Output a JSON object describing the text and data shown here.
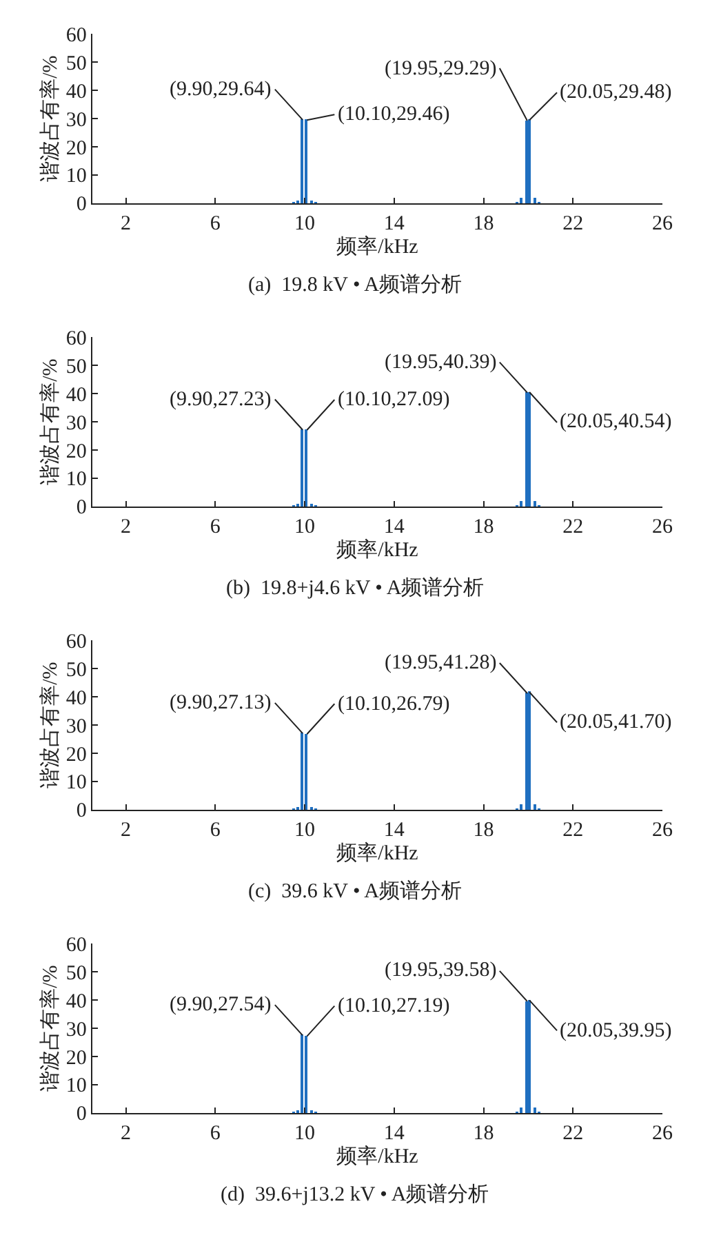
{
  "chart_data": [
    {
      "type": "bar",
      "title": "(a)  19.8 kV • A频谱分析",
      "xlabel": "频率/kHz",
      "ylabel": "谐波占有率/%",
      "color": "#1f6fc0",
      "x": [
        9.5,
        9.7,
        9.9,
        10.1,
        10.3,
        10.5,
        19.5,
        19.7,
        19.95,
        20.05,
        20.3,
        20.5
      ],
      "values": [
        0.3,
        1,
        29.64,
        29.46,
        1,
        0.3,
        0.3,
        2,
        29.29,
        29.48,
        2,
        0.3
      ],
      "xlim": [
        0.5,
        26
      ],
      "xticks": [
        2,
        6,
        10,
        14,
        18,
        22,
        26
      ],
      "ylim": [
        0,
        60
      ],
      "yticks": [
        0,
        10,
        20,
        30,
        40,
        50,
        60
      ],
      "annotations": [
        {
          "text": "(9.90,29.64)",
          "x": 9.9,
          "y": 29.64
        },
        {
          "text": "(10.10,29.46)",
          "x": 10.1,
          "y": 29.46
        },
        {
          "text": "(19.95,29.29)",
          "x": 19.95,
          "y": 29.29
        },
        {
          "text": "(20.05,29.48)",
          "x": 20.05,
          "y": 29.48
        }
      ]
    },
    {
      "type": "bar",
      "title": "(b)  19.8+j4.6 kV • A频谱分析",
      "xlabel": "频率/kHz",
      "ylabel": "谐波占有率/%",
      "color": "#1f6fc0",
      "x": [
        9.5,
        9.7,
        9.9,
        10.1,
        10.3,
        10.5,
        19.5,
        19.7,
        19.95,
        20.05,
        20.3,
        20.5
      ],
      "values": [
        0.3,
        1,
        27.23,
        27.09,
        1,
        0.3,
        0.3,
        2,
        40.39,
        40.54,
        2,
        0.3
      ],
      "xlim": [
        0.5,
        26
      ],
      "xticks": [
        2,
        6,
        10,
        14,
        18,
        22,
        26
      ],
      "ylim": [
        0,
        60
      ],
      "yticks": [
        0,
        10,
        20,
        30,
        40,
        50,
        60
      ],
      "annotations": [
        {
          "text": "(9.90,27.23)",
          "x": 9.9,
          "y": 27.23
        },
        {
          "text": "(10.10,27.09)",
          "x": 10.1,
          "y": 27.09
        },
        {
          "text": "(19.95,40.39)",
          "x": 19.95,
          "y": 40.39
        },
        {
          "text": "(20.05,40.54)",
          "x": 20.05,
          "y": 40.54
        }
      ]
    },
    {
      "type": "bar",
      "title": "(c)  39.6 kV • A频谱分析",
      "xlabel": "频率/kHz",
      "ylabel": "谐波占有率/%",
      "color": "#1f6fc0",
      "x": [
        9.5,
        9.7,
        9.9,
        10.1,
        10.3,
        10.5,
        19.5,
        19.7,
        19.95,
        20.05,
        20.3,
        20.5
      ],
      "values": [
        0.3,
        1,
        27.13,
        26.79,
        1,
        0.3,
        0.3,
        2,
        41.28,
        41.7,
        2,
        0.3
      ],
      "xlim": [
        0.5,
        26
      ],
      "xticks": [
        2,
        6,
        10,
        14,
        18,
        22,
        26
      ],
      "ylim": [
        0,
        60
      ],
      "yticks": [
        0,
        10,
        20,
        30,
        40,
        50,
        60
      ],
      "annotations": [
        {
          "text": "(9.90,27.13)",
          "x": 9.9,
          "y": 27.13
        },
        {
          "text": "(10.10,26.79)",
          "x": 10.1,
          "y": 26.79
        },
        {
          "text": "(19.95,41.28)",
          "x": 19.95,
          "y": 41.28
        },
        {
          "text": "(20.05,41.70)",
          "x": 20.05,
          "y": 41.7
        }
      ]
    },
    {
      "type": "bar",
      "title": "(d)  39.6+j13.2 kV • A频谱分析",
      "xlabel": "频率/kHz",
      "ylabel": "谐波占有率/%",
      "color": "#1f6fc0",
      "x": [
        9.5,
        9.7,
        9.9,
        10.1,
        10.3,
        10.5,
        19.5,
        19.7,
        19.95,
        20.05,
        20.3,
        20.5
      ],
      "values": [
        0.3,
        1,
        27.54,
        27.19,
        1,
        0.3,
        0.3,
        2,
        39.58,
        39.95,
        2,
        0.3
      ],
      "xlim": [
        0.5,
        26
      ],
      "xticks": [
        2,
        6,
        10,
        14,
        18,
        22,
        26
      ],
      "ylim": [
        0,
        60
      ],
      "yticks": [
        0,
        10,
        20,
        30,
        40,
        50,
        60
      ],
      "annotations": [
        {
          "text": "(9.90,27.54)",
          "x": 9.9,
          "y": 27.54
        },
        {
          "text": "(10.10,27.19)",
          "x": 10.1,
          "y": 27.19
        },
        {
          "text": "(19.95,39.58)",
          "x": 19.95,
          "y": 39.58
        },
        {
          "text": "(20.05,39.95)",
          "x": 20.05,
          "y": 39.95
        }
      ]
    }
  ]
}
